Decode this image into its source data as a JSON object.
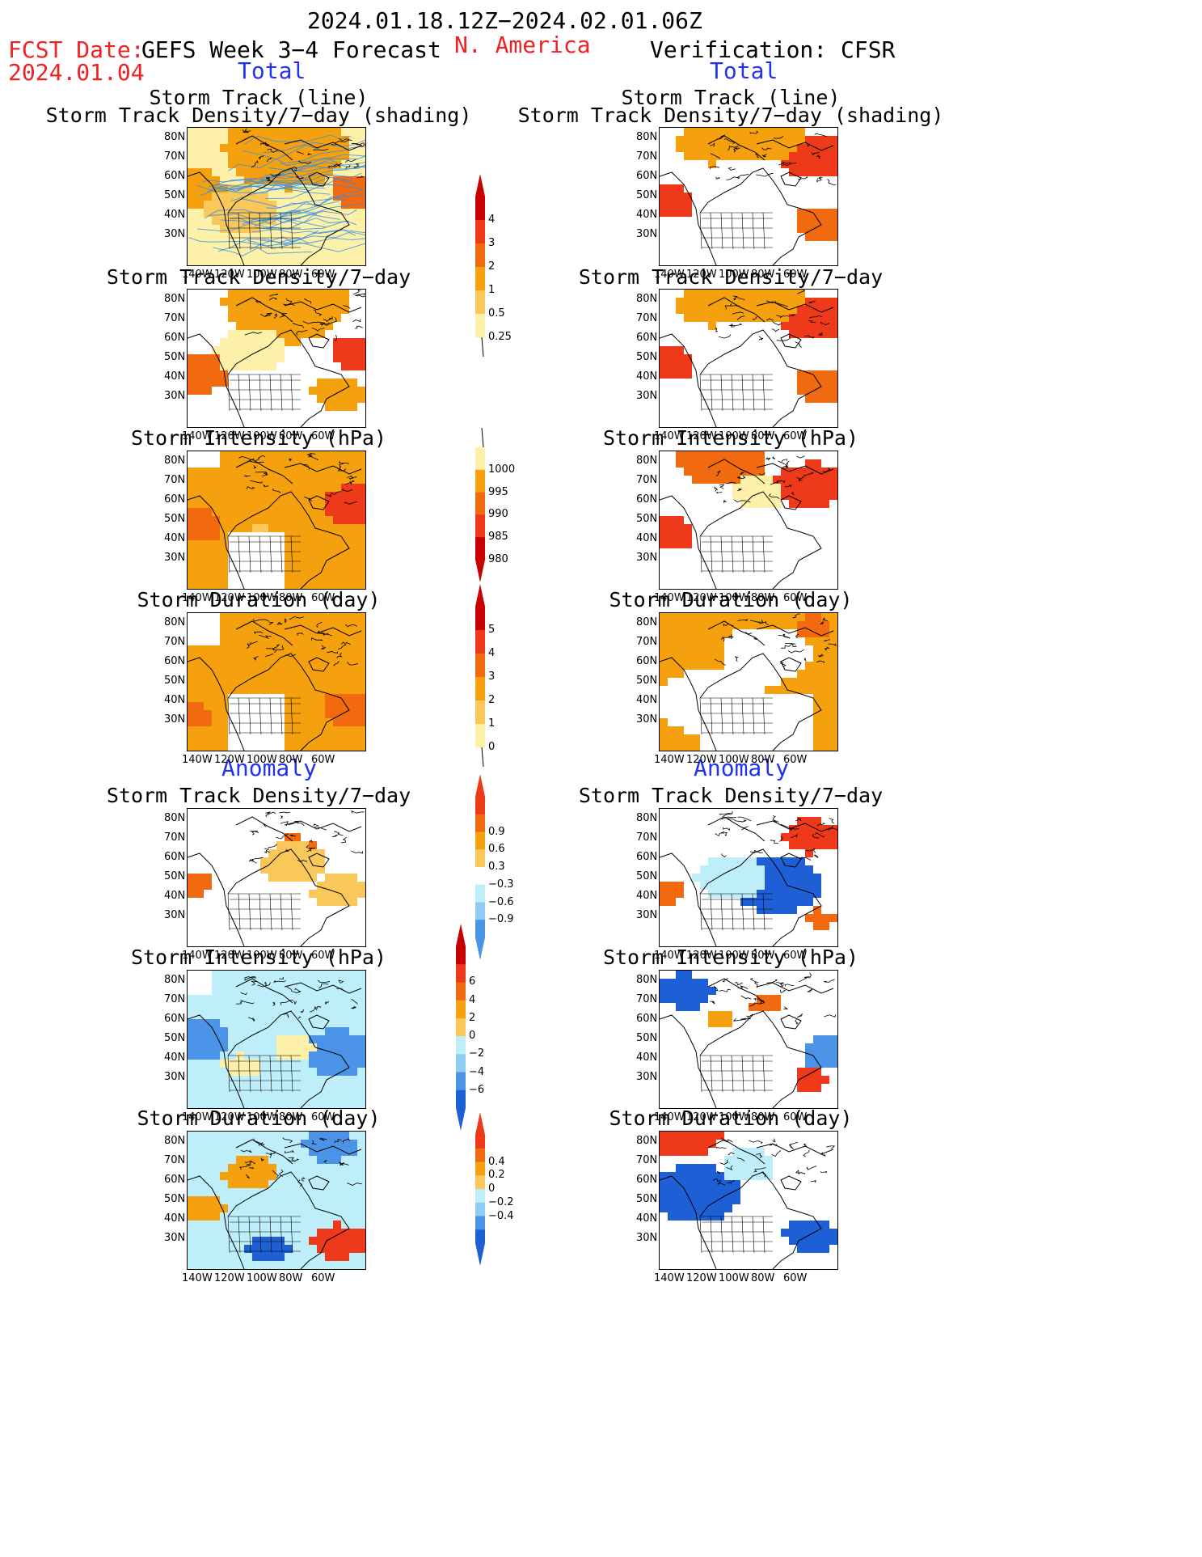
{
  "header": {
    "date_range": "2024.01.18.12Z−2024.02.01.06Z",
    "fcst_label": "FCST Date:",
    "fcst_value": "2024.01.04",
    "forecast_title": "GEFS Week 3−4 Forecast",
    "region": "N. America",
    "verification": "Verification: CFSR"
  },
  "sections": {
    "total_left": "Total",
    "total_right": "Total",
    "anomaly_left": "Anomaly",
    "anomaly_right": "Anomaly"
  },
  "panel_titles": {
    "track_line": "Storm Track (line)",
    "track_shading": "Storm Track Density/7−day (shading)",
    "density": "Storm Track Density/7−day",
    "intensity": "Storm Intensity (hPa)",
    "duration": "Storm Duration (day)"
  },
  "axes": {
    "lat_labels": [
      "80N",
      "70N",
      "60N",
      "50N",
      "40N",
      "30N"
    ],
    "lon_labels": [
      "140W",
      "120W",
      "100W",
      "80W",
      "60W"
    ]
  },
  "colorbars": {
    "density_total": [
      "4",
      "3",
      "2",
      "1",
      "0.5",
      "0.25"
    ],
    "intensity_total": [
      "1000",
      "995",
      "990",
      "985",
      "980"
    ],
    "duration_total": [
      "5",
      "4",
      "3",
      "2",
      "1",
      "0"
    ],
    "density_anom": [
      "0.9",
      "0.6",
      "0.3",
      "−0.3",
      "−0.6",
      "−0.9"
    ],
    "intensity_anom": [
      "6",
      "4",
      "2",
      "0",
      "−2",
      "−4",
      "−6"
    ],
    "duration_anom": [
      "0.4",
      "0.2",
      "0",
      "−0.2",
      "−0.4"
    ]
  },
  "colors": {
    "dark_red": "#c80000",
    "red": "#ee3a1a",
    "orange_red": "#f26a10",
    "orange": "#f5a00f",
    "light_orange": "#f9c75a",
    "pale_yellow": "#fdf0a8",
    "light_blue": "#bfeefb",
    "sky_blue": "#8fcdf2",
    "mid_blue": "#4b93e6",
    "dark_blue": "#1e5fd6",
    "track_blue": "#2f8ee6"
  }
}
